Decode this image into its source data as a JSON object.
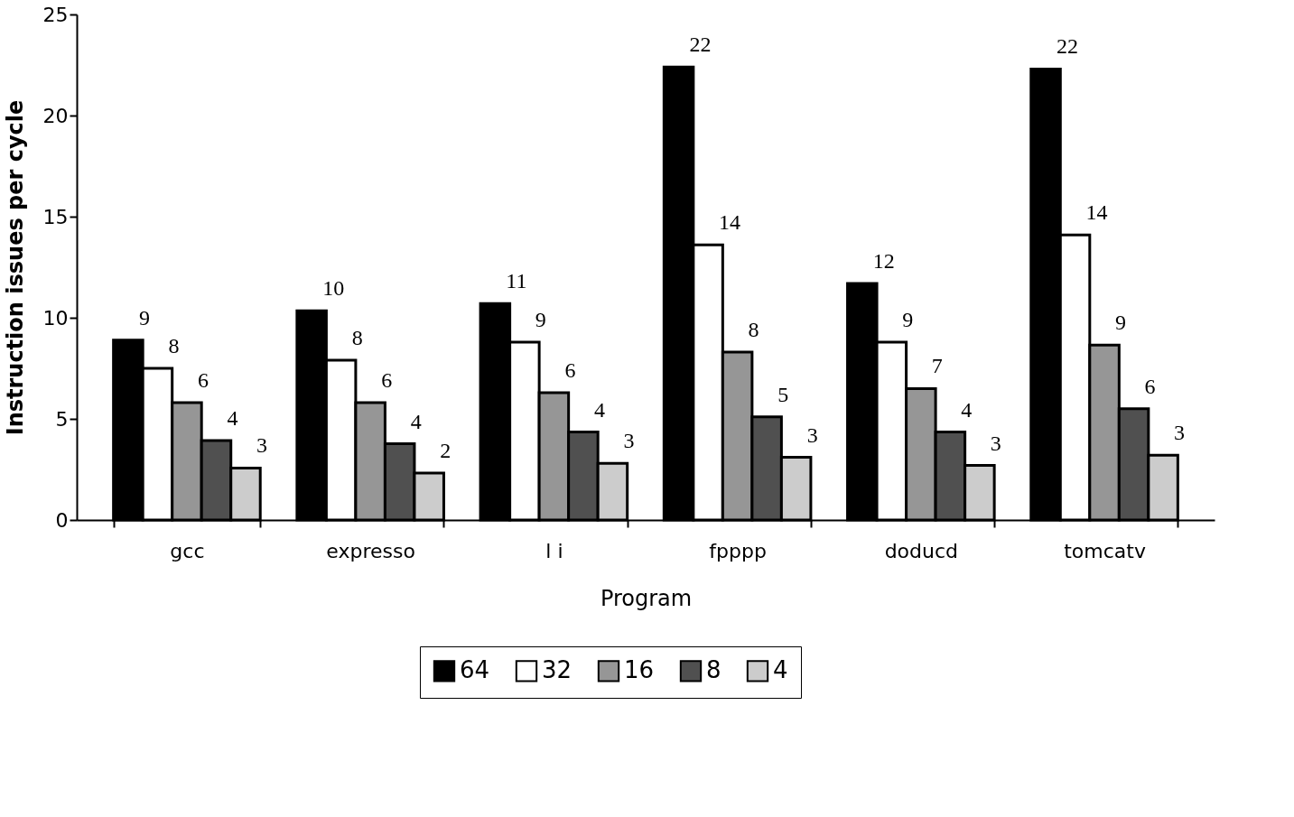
{
  "chart_data": {
    "type": "bar",
    "xlabel": "Program",
    "ylabel": "Instruction issues per cycle",
    "categories": [
      "gcc",
      "expresso",
      "l i",
      "fpppp",
      "doducd",
      "tomcatv"
    ],
    "series": [
      {
        "name": "64",
        "color": "#000000",
        "values": [
          8.9,
          10.35,
          10.7,
          22.4,
          11.7,
          22.3
        ],
        "value_labels": [
          "9",
          "10",
          "11",
          "22",
          "12",
          "22"
        ]
      },
      {
        "name": "32",
        "color": "#ffffff",
        "values": [
          7.5,
          7.9,
          8.8,
          13.6,
          8.8,
          14.1
        ],
        "value_labels": [
          "8",
          "8",
          "9",
          "14",
          "9",
          "14"
        ]
      },
      {
        "name": "16",
        "color": "#969696",
        "values": [
          5.8,
          5.8,
          6.3,
          8.3,
          6.5,
          8.65
        ],
        "value_labels": [
          "6",
          "6",
          "6",
          "8",
          "7",
          "9"
        ]
      },
      {
        "name": "8",
        "color": "#505050",
        "values": [
          3.93,
          3.77,
          4.35,
          5.1,
          4.35,
          5.5
        ],
        "value_labels": [
          "4",
          "4",
          "4",
          "5",
          "4",
          "6"
        ]
      },
      {
        "name": "4",
        "color": "#cccccc",
        "values": [
          2.57,
          2.32,
          2.8,
          3.1,
          2.7,
          3.2
        ],
        "value_labels": [
          "3",
          "2",
          "3",
          "3",
          "3",
          "3"
        ]
      }
    ],
    "ylim": [
      0,
      25
    ],
    "yticks": [
      0,
      5,
      10,
      15,
      20,
      25
    ],
    "grid": false,
    "legend": "bottom"
  }
}
